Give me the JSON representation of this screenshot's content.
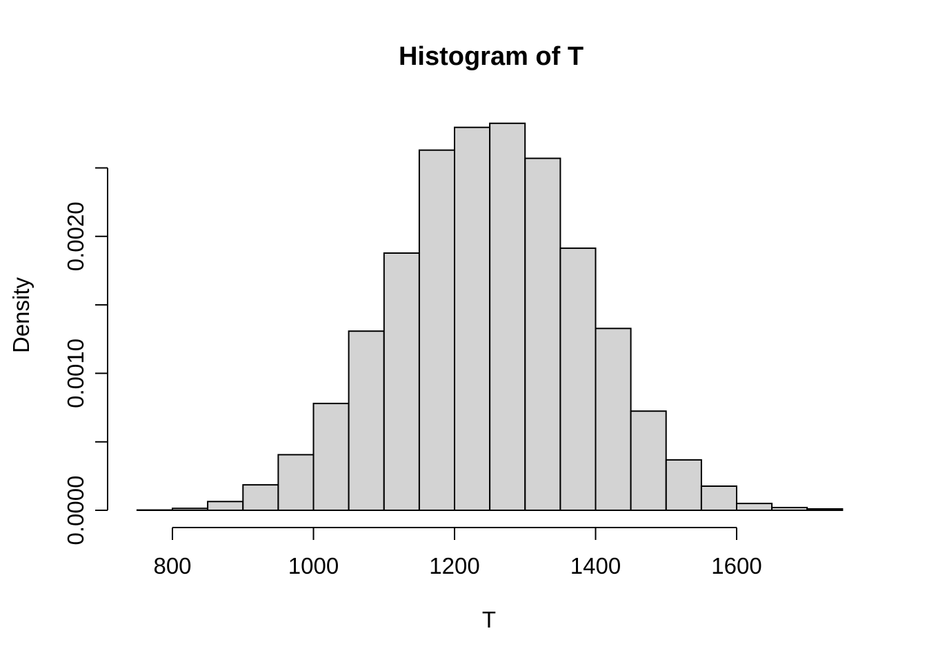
{
  "chart_data": {
    "type": "bar",
    "subtype": "histogram",
    "title": "Histogram of T",
    "xlabel": "T",
    "ylabel": "Density",
    "bin_width": 50,
    "bin_edges": [
      750,
      800,
      850,
      900,
      950,
      1000,
      1050,
      1100,
      1150,
      1200,
      1250,
      1300,
      1350,
      1400,
      1450,
      1500,
      1550,
      1600,
      1650,
      1700,
      1750
    ],
    "densities": [
      2e-06,
      1.4e-05,
      6.4e-05,
      0.000186,
      0.000406,
      0.00078,
      0.001308,
      0.001878,
      0.00263,
      0.002796,
      0.002826,
      0.00257,
      0.001914,
      0.001328,
      0.000724,
      0.000368,
      0.000176,
      5e-05,
      2e-05,
      1e-05
    ],
    "xlim": [
      750,
      1750
    ],
    "ylim": [
      0,
      0.0025
    ],
    "x_ticks": [
      800,
      1000,
      1200,
      1400,
      1600
    ],
    "x_tick_labels": [
      "800",
      "1000",
      "1200",
      "1400",
      "1600"
    ],
    "y_ticks": [
      0.0,
      0.0005,
      0.001,
      0.0015,
      0.002,
      0.0025
    ],
    "y_tick_labels": [
      "0.0000",
      "",
      "0.0010",
      "",
      "0.0020",
      ""
    ],
    "grid": false,
    "legend": null,
    "colors": {
      "bar_fill": "#d3d3d3",
      "bar_stroke": "#000000",
      "axis": "#000000",
      "text": "#000000",
      "background": "#ffffff"
    }
  }
}
